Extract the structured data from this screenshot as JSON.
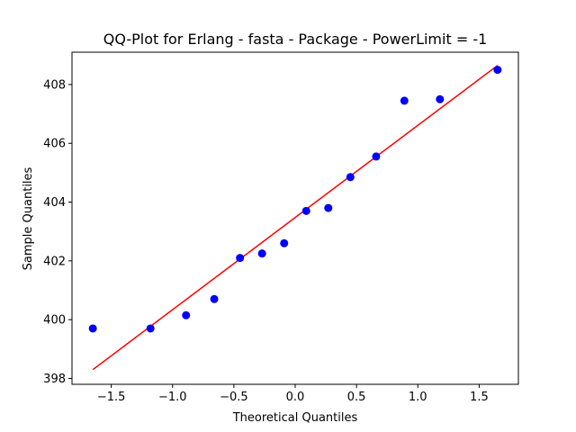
{
  "chart_data": {
    "type": "scatter",
    "title": "QQ-Plot for Erlang - fasta - Package - PowerLimit = -1",
    "xlabel": "Theoretical Quantiles",
    "ylabel": "Sample Quantiles",
    "xlim": [
      -1.82,
      1.82
    ],
    "ylim": [
      397.8,
      409.1
    ],
    "xticks": [
      -1.5,
      -1.0,
      -0.5,
      0.0,
      0.5,
      1.0,
      1.5
    ],
    "xtick_labels": [
      "−1.5",
      "−1.0",
      "−0.5",
      "0.0",
      "0.5",
      "1.0",
      "1.5"
    ],
    "yticks": [
      398,
      400,
      402,
      404,
      406,
      408
    ],
    "ytick_labels": [
      "398",
      "400",
      "402",
      "404",
      "406",
      "408"
    ],
    "grid": false,
    "points": {
      "color": "#0000ff",
      "x": [
        -1.65,
        -1.18,
        -0.89,
        -0.66,
        -0.45,
        -0.27,
        -0.09,
        0.09,
        0.27,
        0.45,
        0.66,
        0.89,
        1.18,
        1.65
      ],
      "y": [
        399.7,
        399.7,
        400.15,
        400.7,
        402.1,
        402.25,
        402.6,
        403.7,
        403.8,
        404.85,
        405.55,
        407.45,
        407.5,
        408.5
      ]
    },
    "reference_line": {
      "color": "#ff0000",
      "x": [
        -1.65,
        1.65
      ],
      "y": [
        398.3,
        408.65
      ]
    }
  }
}
